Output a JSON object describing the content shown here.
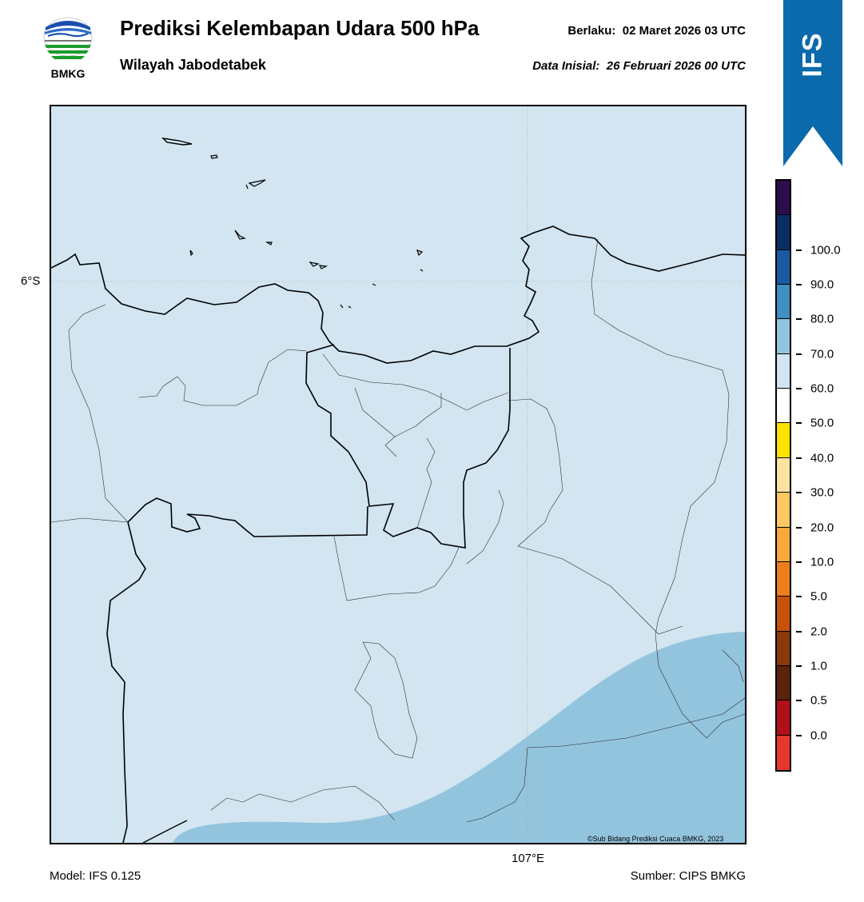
{
  "header": {
    "logo_text": "BMKG",
    "title": "Prediksi Kelembapan Udara 500 hPa",
    "subtitle": "Wilayah Jabodetabek",
    "valid_label": "Berlaku:",
    "valid_time": "02 Maret 2026 03 UTC",
    "init_label": "Data Inisial:",
    "init_time": "26 Februari 2026 00 UTC"
  },
  "ribbon": {
    "text": "IFS",
    "color": "#0a6aab"
  },
  "map": {
    "lat_label": "6°S",
    "lon_label": "107°E",
    "credit": "©Sub Bidang Prediksi Cuaca BMKG, 2023",
    "background_color": "#d2e5f0",
    "high_humidity_color": "#93c4de"
  },
  "colorbar": {
    "labels": [
      "0.0",
      "0.5",
      "1.0",
      "2.0",
      "5.0",
      "10.0",
      "20.0",
      "30.0",
      "40.0",
      "50.0",
      "60.0",
      "70.0",
      "80.0",
      "90.0",
      "100.0"
    ],
    "colors": [
      "#e8382e",
      "#b01019",
      "#5c230c",
      "#8a3a0a",
      "#c8520c",
      "#ec7f1d",
      "#f8a93a",
      "#fbc861",
      "#fde3a2",
      "#fce300",
      "#ffffff",
      "#d2e5f0",
      "#93c4de",
      "#3f8fc2",
      "#1b5aa3",
      "#0b2e62",
      "#2c0c4a"
    ]
  },
  "footer": {
    "model": "Model: IFS 0.125",
    "source": "Sumber: CIPS BMKG"
  }
}
